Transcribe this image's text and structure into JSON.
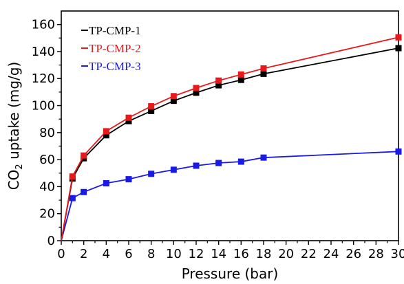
{
  "chart_data": {
    "type": "line",
    "xlabel": "Pressure (bar)",
    "ylabel_main": "CO",
    "ylabel_sub": "2",
    "ylabel_rest": " uptake (mg/g)",
    "xlim": [
      0,
      30
    ],
    "ylim": [
      0,
      170
    ],
    "xticks": [
      "0",
      "2",
      "4",
      "6",
      "8",
      "10",
      "12",
      "14",
      "16",
      "18",
      "20",
      "22",
      "24",
      "26",
      "28",
      "30"
    ],
    "yticks": [
      "0",
      "20",
      "40",
      "60",
      "80",
      "100",
      "120",
      "140",
      "160"
    ],
    "legend_position": "top-left",
    "series": [
      {
        "name": "TP-CMP-1",
        "color": "#000000",
        "x": [
          0,
          1,
          2,
          4,
          6,
          8,
          10,
          12,
          14,
          16,
          18,
          30
        ],
        "y": [
          0,
          46,
          61,
          78,
          88.5,
          96,
          103.5,
          109.5,
          115,
          119,
          123.5,
          142.5
        ]
      },
      {
        "name": "TP-CMP-2",
        "color": "#e8191b",
        "x": [
          0,
          1,
          2,
          4,
          6,
          8,
          10,
          12,
          14,
          16,
          18,
          30
        ],
        "y": [
          0,
          47.5,
          63,
          81,
          91,
          99.5,
          107,
          113,
          118.5,
          123,
          127.5,
          150.5
        ]
      },
      {
        "name": "TP-CMP-3",
        "color": "#1a1ae6",
        "x": [
          0,
          1,
          2,
          4,
          6,
          8,
          10,
          12,
          14,
          16,
          18,
          30
        ],
        "y": [
          0,
          31.5,
          36,
          42.5,
          45.5,
          49.5,
          52.5,
          55.5,
          57.5,
          58.5,
          61.5,
          66
        ]
      }
    ]
  }
}
